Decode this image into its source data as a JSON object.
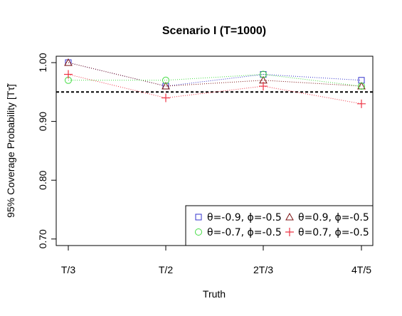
{
  "chart_data": {
    "type": "line",
    "title": "Scenario I (T=1000)",
    "xlabel": "Truth",
    "ylabel": "95% Coverage Probability [Tτ̃]",
    "categories": [
      "T/3",
      "T/2",
      "2T/3",
      "4T/5"
    ],
    "yticks": [
      "0.70",
      "0.80",
      "0.90",
      "1.00"
    ],
    "ylim": [
      0.69,
      1.01
    ],
    "reference_line": 0.95,
    "series": [
      {
        "name": "θ=-0.9, ϕ=-0.5",
        "marker": "square",
        "color": "#3333cc",
        "values": [
          1.0,
          0.96,
          0.98,
          0.97
        ]
      },
      {
        "name": "θ=0.9, ϕ=-0.5",
        "marker": "triangle",
        "color": "#7a1010",
        "values": [
          1.0,
          0.96,
          0.97,
          0.96
        ]
      },
      {
        "name": "θ=-0.7, ϕ=-0.5",
        "marker": "circle",
        "color": "#44dd44",
        "values": [
          0.97,
          0.97,
          0.98,
          0.96
        ]
      },
      {
        "name": "θ=0.7, ϕ=-0.5",
        "marker": "plus",
        "color": "#ee3344",
        "values": [
          0.98,
          0.94,
          0.96,
          0.93
        ]
      }
    ],
    "legend_position": "bottom-right"
  }
}
